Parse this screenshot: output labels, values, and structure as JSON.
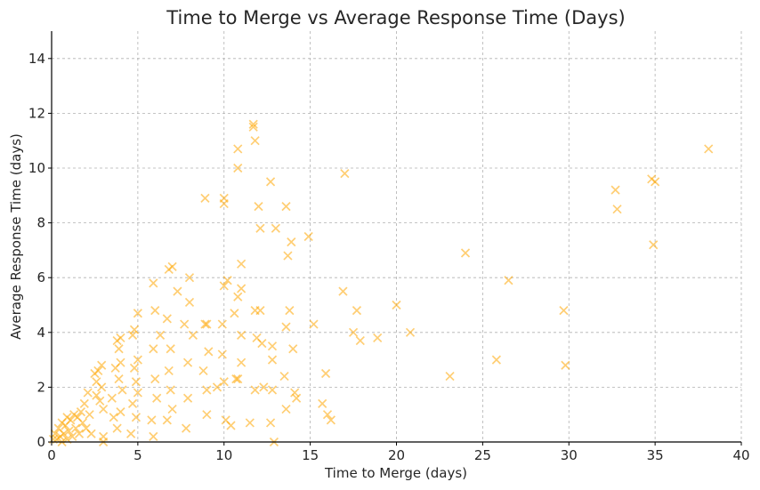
{
  "chart_data": {
    "type": "scatter",
    "title": "Time to Merge vs Average Response Time (Days)",
    "xlabel": "Time to Merge (days)",
    "ylabel": "Average Response Time (days)",
    "xlim": [
      0,
      40
    ],
    "ylim": [
      0,
      15
    ],
    "xticks": [
      0,
      5,
      10,
      15,
      20,
      25,
      30,
      35,
      40
    ],
    "yticks": [
      0,
      2,
      4,
      6,
      8,
      10,
      12,
      14
    ],
    "grid": true,
    "marker": "x",
    "color": "#FFA500",
    "series": [
      {
        "points": [
          [
            0.1,
            0.1
          ],
          [
            0.2,
            0.3
          ],
          [
            0.3,
            0.1
          ],
          [
            0.4,
            0.5
          ],
          [
            0.5,
            0.2
          ],
          [
            0.6,
            0.7
          ],
          [
            0.7,
            0.3
          ],
          [
            0.8,
            0.6
          ],
          [
            0.9,
            0.9
          ],
          [
            1.0,
            0.4
          ],
          [
            1.1,
            0.8
          ],
          [
            1.2,
            0.2
          ],
          [
            1.3,
            1.0
          ],
          [
            0.6,
            0.0
          ],
          [
            0.9,
            0.1
          ],
          [
            1.4,
            0.5
          ],
          [
            1.5,
            0.9
          ],
          [
            1.6,
            0.3
          ],
          [
            1.7,
            1.1
          ],
          [
            1.8,
            0.7
          ],
          [
            1.9,
            1.4
          ],
          [
            2.0,
            0.5
          ],
          [
            2.1,
            1.8
          ],
          [
            2.2,
            1.0
          ],
          [
            2.3,
            0.3
          ],
          [
            2.5,
            2.5
          ],
          [
            2.6,
            2.2
          ],
          [
            2.7,
            2.6
          ],
          [
            2.8,
            1.5
          ],
          [
            2.9,
            2.0
          ],
          [
            3.0,
            1.2
          ],
          [
            3.0,
            0.2
          ],
          [
            3.0,
            0.0
          ],
          [
            2.9,
            2.8
          ],
          [
            2.6,
            1.7
          ],
          [
            3.5,
            1.6
          ],
          [
            3.6,
            0.9
          ],
          [
            3.7,
            2.7
          ],
          [
            3.8,
            3.7
          ],
          [
            3.9,
            3.4
          ],
          [
            4.0,
            2.9
          ],
          [
            3.9,
            2.3
          ],
          [
            3.8,
            0.5
          ],
          [
            4.0,
            1.1
          ],
          [
            4.1,
            1.9
          ],
          [
            4.0,
            3.8
          ],
          [
            4.7,
            3.9
          ],
          [
            4.8,
            4.1
          ],
          [
            4.9,
            2.2
          ],
          [
            5.0,
            1.8
          ],
          [
            4.9,
            0.9
          ],
          [
            4.8,
            2.7
          ],
          [
            5.0,
            4.7
          ],
          [
            5.0,
            3.0
          ],
          [
            4.7,
            1.4
          ],
          [
            4.6,
            0.3
          ],
          [
            5.9,
            5.8
          ],
          [
            6.0,
            4.8
          ],
          [
            5.9,
            3.4
          ],
          [
            6.0,
            2.3
          ],
          [
            6.1,
            1.6
          ],
          [
            5.8,
            0.8
          ],
          [
            5.9,
            0.2
          ],
          [
            6.3,
            3.9
          ],
          [
            6.8,
            6.3
          ],
          [
            7.0,
            6.4
          ],
          [
            6.7,
            4.5
          ],
          [
            6.9,
            3.4
          ],
          [
            6.8,
            2.6
          ],
          [
            6.9,
            1.9
          ],
          [
            7.0,
            1.2
          ],
          [
            6.7,
            0.8
          ],
          [
            7.3,
            5.5
          ],
          [
            7.7,
            4.3
          ],
          [
            7.9,
            2.9
          ],
          [
            7.9,
            1.6
          ],
          [
            7.8,
            0.5
          ],
          [
            8.0,
            6.0
          ],
          [
            8.0,
            5.1
          ],
          [
            8.2,
            3.9
          ],
          [
            8.9,
            8.9
          ],
          [
            8.9,
            4.3
          ],
          [
            9.0,
            4.3
          ],
          [
            9.1,
            3.3
          ],
          [
            9.0,
            1.9
          ],
          [
            9.0,
            1.0
          ],
          [
            8.8,
            2.6
          ],
          [
            9.6,
            2.0
          ],
          [
            9.9,
            4.3
          ],
          [
            9.9,
            3.2
          ],
          [
            10.0,
            8.9
          ],
          [
            10.0,
            8.7
          ],
          [
            10.0,
            5.7
          ],
          [
            10.2,
            5.9
          ],
          [
            10.0,
            2.2
          ],
          [
            10.1,
            0.8
          ],
          [
            10.4,
            0.6
          ],
          [
            10.6,
            4.7
          ],
          [
            10.7,
            2.3
          ],
          [
            10.8,
            2.3
          ],
          [
            10.8,
            10.0
          ],
          [
            10.8,
            10.7
          ],
          [
            10.8,
            5.3
          ],
          [
            11.0,
            6.5
          ],
          [
            11.0,
            5.6
          ],
          [
            11.0,
            3.9
          ],
          [
            11.0,
            2.9
          ],
          [
            11.5,
            0.7
          ],
          [
            11.7,
            11.5
          ],
          [
            11.7,
            11.6
          ],
          [
            11.8,
            11.0
          ],
          [
            11.8,
            4.8
          ],
          [
            11.9,
            3.8
          ],
          [
            11.8,
            1.9
          ],
          [
            12.0,
            8.6
          ],
          [
            12.1,
            7.8
          ],
          [
            12.1,
            4.8
          ],
          [
            12.2,
            3.6
          ],
          [
            12.3,
            2.0
          ],
          [
            12.7,
            9.5
          ],
          [
            12.8,
            3.5
          ],
          [
            12.8,
            3.0
          ],
          [
            12.8,
            1.9
          ],
          [
            12.9,
            0.0
          ],
          [
            13.0,
            7.8
          ],
          [
            12.7,
            0.7
          ],
          [
            13.6,
            8.6
          ],
          [
            13.7,
            6.8
          ],
          [
            13.8,
            4.8
          ],
          [
            13.9,
            7.3
          ],
          [
            13.6,
            4.2
          ],
          [
            13.5,
            2.4
          ],
          [
            13.6,
            1.2
          ],
          [
            14.0,
            3.4
          ],
          [
            14.1,
            1.8
          ],
          [
            14.2,
            1.6
          ],
          [
            14.9,
            7.5
          ],
          [
            15.2,
            4.3
          ],
          [
            15.7,
            1.4
          ],
          [
            15.9,
            2.5
          ],
          [
            16.0,
            1.0
          ],
          [
            16.2,
            0.8
          ],
          [
            16.9,
            5.5
          ],
          [
            17.0,
            9.8
          ],
          [
            17.5,
            4.0
          ],
          [
            17.7,
            4.8
          ],
          [
            17.9,
            3.7
          ],
          [
            18.9,
            3.8
          ],
          [
            20.0,
            5.0
          ],
          [
            20.8,
            4.0
          ],
          [
            23.1,
            2.4
          ],
          [
            24.0,
            6.9
          ],
          [
            25.8,
            3.0
          ],
          [
            26.5,
            5.9
          ],
          [
            29.7,
            4.8
          ],
          [
            29.8,
            2.8
          ],
          [
            32.7,
            9.2
          ],
          [
            32.8,
            8.5
          ],
          [
            34.8,
            9.6
          ],
          [
            35.0,
            9.5
          ],
          [
            34.9,
            7.2
          ],
          [
            38.1,
            10.7
          ]
        ]
      }
    ]
  }
}
